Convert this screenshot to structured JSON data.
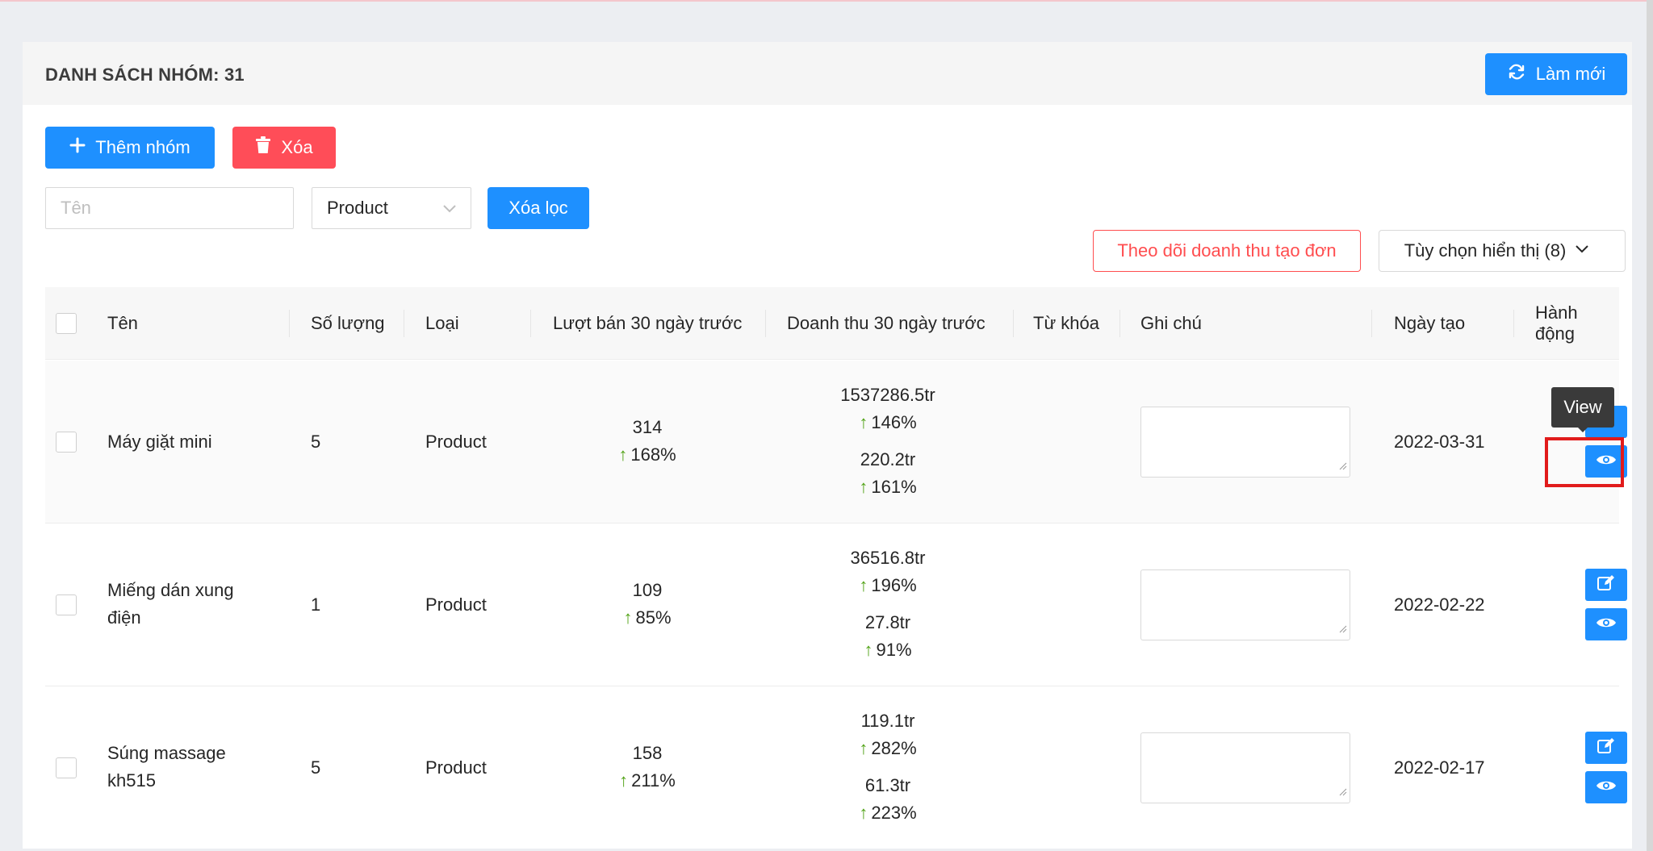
{
  "header": {
    "title": "DANH SÁCH NHÓM: 31",
    "refresh_label": "Làm mới"
  },
  "toolbar": {
    "add_label": "Thêm nhóm",
    "delete_label": "Xóa"
  },
  "filters": {
    "name_placeholder": "Tên",
    "type_value": "Product",
    "clear_label": "Xóa lọc"
  },
  "options": {
    "track_label": "Theo dõi doanh thu tạo đơn",
    "display_label": "Tùy chọn hiển thị (8)"
  },
  "table": {
    "columns": {
      "name": "Tên",
      "quantity": "Số lượng",
      "type": "Loại",
      "sales": "Lượt bán 30 ngày trước",
      "revenue": "Doanh thu 30 ngày trước",
      "keyword": "Từ khóa",
      "note": "Ghi chú",
      "created": "Ngày tạo",
      "action": "Hành động"
    },
    "rows": [
      {
        "name": "Máy giặt mini",
        "quantity": "5",
        "type": "Product",
        "sales": "314",
        "sales_change": "168%",
        "revenue_1": "1537286.5tr",
        "revenue_1_change": "146%",
        "revenue_2": "220.2tr",
        "revenue_2_change": "161%",
        "keyword": "",
        "note": "",
        "created": "2022-03-31"
      },
      {
        "name": "Miếng dán xung điện",
        "quantity": "1",
        "type": "Product",
        "sales": "109",
        "sales_change": "85%",
        "revenue_1": "36516.8tr",
        "revenue_1_change": "196%",
        "revenue_2": "27.8tr",
        "revenue_2_change": "91%",
        "keyword": "",
        "note": "",
        "created": "2022-02-22"
      },
      {
        "name": "Súng massage kh515",
        "quantity": "5",
        "type": "Product",
        "sales": "158",
        "sales_change": "211%",
        "revenue_1": "119.1tr",
        "revenue_1_change": "282%",
        "revenue_2": "61.3tr",
        "revenue_2_change": "223%",
        "keyword": "",
        "note": "",
        "created": "2022-02-17"
      }
    ]
  },
  "tooltip": {
    "text": "View"
  },
  "icons": {
    "refresh": "refresh-icon",
    "plus": "plus-icon",
    "trash": "trash-icon",
    "chevron": "chevron-down-icon",
    "edit": "edit-icon",
    "view": "eye-icon",
    "up_arrow": "arrow-up-icon"
  },
  "colors": {
    "primary": "#1e90ff",
    "danger": "#ff4d58",
    "increase": "#52a317",
    "highlight": "#e11b1b"
  }
}
